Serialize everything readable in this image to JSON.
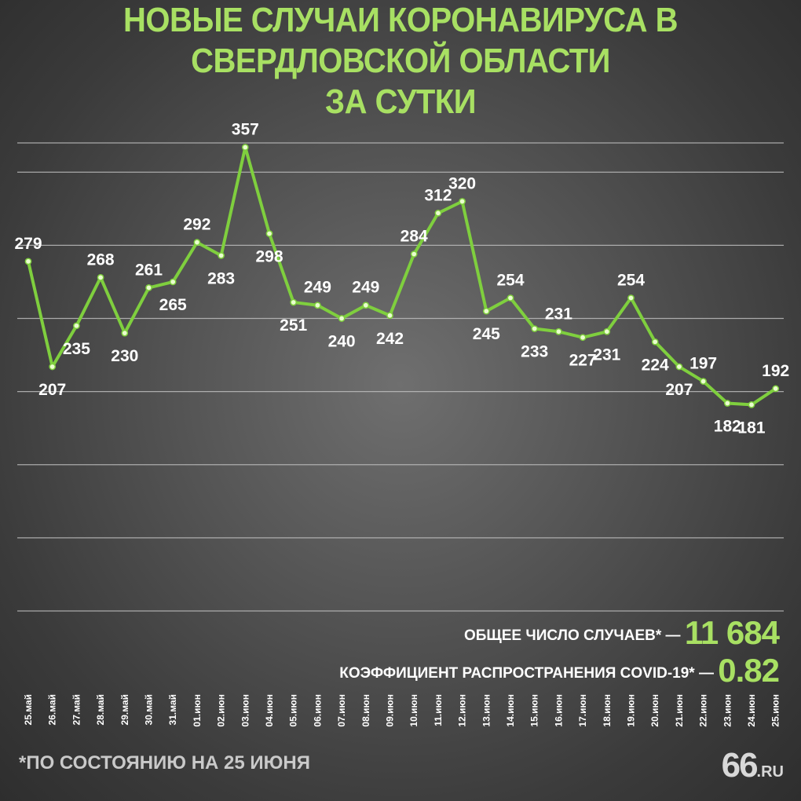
{
  "title_line1": "НОВЫЕ СЛУЧАИ КОРОНАВИРУСА В СВЕРДЛОВСКОЙ ОБЛАСТИ",
  "title_line2": "ЗА СУТКИ",
  "stats": {
    "total_label": "ОБЩЕЕ ЧИСЛО СЛУЧАЕВ* —",
    "total_value": "11 684",
    "r_label": "КОЭФФИЦИЕНТ РАСПРОСТРАНЕНИЯ COVID-19* —",
    "r_value": "0.82"
  },
  "footnote": "*ПО СОСТОЯНИЮ НА 25 ИЮНЯ",
  "logo": {
    "number": "66",
    "suffix": ".RU"
  },
  "colors": {
    "accent": "#a8e063",
    "line": "#7fcf3e",
    "text": "#ffffff"
  },
  "chart_data": {
    "type": "line",
    "title": "НОВЫЕ СЛУЧАИ КОРОНАВИРУСА В СВЕРДЛОВСКОЙ ОБЛАСТИ ЗА СУТКИ",
    "xlabel": "",
    "ylabel": "",
    "ylim": [
      40,
      360
    ],
    "grid": true,
    "categories": [
      "25.май",
      "26.май",
      "27.май",
      "28.май",
      "29.май",
      "30.май",
      "31.май",
      "01.июн",
      "02.июн",
      "03.июн",
      "04.июн",
      "05.июн",
      "06.июн",
      "07.июн",
      "08.июн",
      "09.июн",
      "10.июн",
      "11.июн",
      "12.июн",
      "13.июн",
      "14.июн",
      "15.июн",
      "16.июн",
      "17.июн",
      "18.июн",
      "19.июн",
      "20.июн",
      "21.июн",
      "22.июн",
      "23.июн",
      "24.июн",
      "25.июн"
    ],
    "values": [
      279,
      207,
      235,
      268,
      230,
      261,
      265,
      292,
      283,
      357,
      298,
      251,
      249,
      240,
      249,
      242,
      284,
      312,
      320,
      245,
      254,
      233,
      231,
      227,
      231,
      254,
      224,
      207,
      197,
      182,
      181,
      192
    ]
  }
}
